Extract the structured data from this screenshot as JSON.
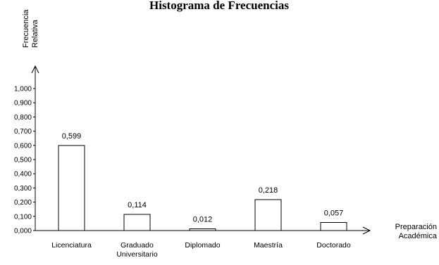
{
  "chart_data": {
    "type": "bar",
    "title": "Histograma de Frecuencias",
    "ylabel": [
      "Frecuencia",
      "Relativa"
    ],
    "xlabel": [
      "Preparación",
      "Académica"
    ],
    "categories": [
      [
        "Licenciatura"
      ],
      [
        "Graduado",
        "Universitario"
      ],
      [
        "Diplomado"
      ],
      [
        "Maestría"
      ],
      [
        "Doctorado"
      ]
    ],
    "values": [
      0.599,
      0.114,
      0.012,
      0.218,
      0.057
    ],
    "data_labels": [
      "0,599",
      "0,114",
      "0,012",
      "0,218",
      "0,057"
    ],
    "ylim": [
      0,
      1
    ],
    "yticks": [
      0,
      0.1,
      0.2,
      0.3,
      0.4,
      0.5,
      0.6,
      0.7,
      0.8,
      0.9,
      1.0
    ],
    "ytick_labels": [
      "0,000",
      "0,100",
      "0,200",
      "0,300",
      "0,400",
      "0,500",
      "0,600",
      "0,700",
      "0,800",
      "0,900",
      "1,000"
    ],
    "grid": false,
    "bar_fill": "#ffffff",
    "bar_stroke": "#000000"
  }
}
